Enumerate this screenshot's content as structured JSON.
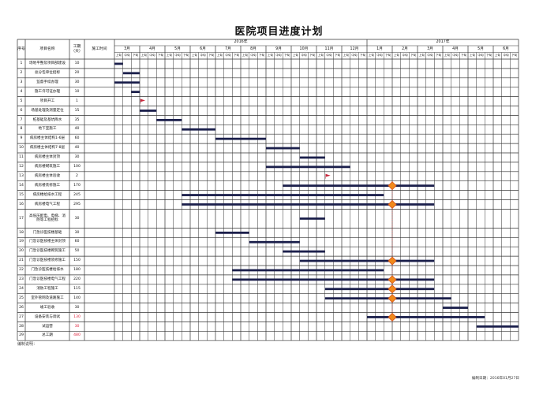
{
  "title": "医院项目进度计划",
  "header": {
    "seq": "序号",
    "name": "项目名称",
    "days": "工期（天）",
    "time": "施工时间",
    "years": [
      {
        "label": "2016年",
        "months": [
          "3月",
          "4月",
          "5月",
          "6月",
          "7月",
          "8月",
          "9月",
          "10月",
          "11月",
          "12月"
        ]
      },
      {
        "label": "2017年",
        "months": [
          "1月",
          "2月",
          "3月",
          "4月",
          "5月",
          "6月"
        ]
      }
    ],
    "periods": [
      "上旬",
      "中旬",
      "下旬"
    ]
  },
  "footer": {
    "note": "编制说明：",
    "date": "编制日期：2016年01月27日"
  },
  "colors": {
    "bar": "#1b1f4b",
    "milestone_flag": "#c8283c",
    "diamond": "#f08a1c",
    "diamond_edge": "#d4501a",
    "red_text": "#e0203a",
    "grid": "#333333"
  },
  "chart_data": {
    "type": "gantt",
    "title": "医院项目进度计划",
    "time_unit": "旬 (上旬=1, 中旬=2, 下旬=3)",
    "range": [
      "2016-03-1",
      "2017-06-3"
    ],
    "tasks": [
      {
        "no": "1",
        "name": "场地平整及项目部建设",
        "days": "10",
        "start": "2016-03-1",
        "end": "2016-03-1"
      },
      {
        "no": "2",
        "name": "总分包单位招标",
        "days": "20",
        "start": "2016-03-2",
        "end": "2016-03-3"
      },
      {
        "no": "3",
        "name": "监督手续办理",
        "days": "30",
        "start": "2016-03-1",
        "end": "2016-03-3"
      },
      {
        "no": "4",
        "name": "施工许可证办理",
        "days": "10",
        "start": "2016-03-3",
        "end": "2016-03-3"
      },
      {
        "no": "5",
        "name": "项目开工",
        "days": "1",
        "flag": "2016-04-1"
      },
      {
        "no": "6",
        "name": "场基处理及测量定位",
        "days": "15",
        "start": "2016-04-1",
        "end": "2016-04-2"
      },
      {
        "no": "7",
        "name": "桩基础及基坑降水",
        "days": "35",
        "start": "2016-04-3",
        "end": "2016-05-2"
      },
      {
        "no": "8",
        "name": "地下室施工",
        "days": "40",
        "start": "2016-05-3",
        "end": "2016-06-3"
      },
      {
        "no": "9",
        "name": "病房楼主体结构1-6层",
        "days": "60",
        "start": "2016-07-1",
        "end": "2016-08-3"
      },
      {
        "no": "10",
        "name": "病房楼主体结构7-8层",
        "days": "40",
        "start": "2016-09-1",
        "end": "2016-10-1"
      },
      {
        "no": "11",
        "name": "病房楼主体封顶",
        "days": "30",
        "start": "2016-10-2",
        "end": "2016-11-1"
      },
      {
        "no": "12",
        "name": "病房楼砌筑施工",
        "days": "100",
        "start": "2016-09-1",
        "end": "2016-12-1"
      },
      {
        "no": "13",
        "name": "病房楼主体验收",
        "days": "2",
        "flag": "2016-11-2"
      },
      {
        "no": "14",
        "name": "病房楼装修施工",
        "days": "170",
        "start": "2016-09-3",
        "end": "2017-03-2",
        "diamond": "2017-02-1"
      },
      {
        "no": "15",
        "name": "病房楼给排水工程",
        "days": "245",
        "start": "2016-05-3",
        "end": "2017-01-2"
      },
      {
        "no": "16",
        "name": "病房楼电气工程",
        "days": "295",
        "start": "2016-05-3",
        "end": "2017-03-2",
        "diamond": "2017-02-1"
      },
      {
        "no": "17",
        "name": "高低压配电、电梯、消防等工程招标",
        "days": "30",
        "start": "2016-10-2",
        "end": "2016-11-1",
        "tall": true
      },
      {
        "no": "18",
        "name": "门急诊医技楼基础",
        "days": "30",
        "start": "2016-07-1",
        "end": "2016-08-1"
      },
      {
        "no": "19",
        "name": "门急诊医技楼主体封顶",
        "days": "60",
        "start": "2016-08-2",
        "end": "2016-10-1"
      },
      {
        "no": "20",
        "name": "门急诊医技楼砌筑施工",
        "days": "50",
        "start": "2016-09-3",
        "end": "2016-11-1"
      },
      {
        "no": "21",
        "name": "门急诊医技楼装修施工",
        "days": "150",
        "start": "2016-10-2",
        "end": "2017-03-2",
        "diamond": "2017-02-1"
      },
      {
        "no": "22",
        "name": "门急诊医技楼给排水",
        "days": "180",
        "start": "2016-07-3",
        "end": "2017-01-2"
      },
      {
        "no": "23",
        "name": "门急诊医技楼电气工程",
        "days": "220",
        "start": "2016-07-3",
        "end": "2017-03-2",
        "diamond": "2017-02-1"
      },
      {
        "no": "24",
        "name": "消防工程施工",
        "days": "115",
        "start": "2016-11-2",
        "end": "2017-03-2",
        "diamond": "2017-02-1"
      },
      {
        "no": "25",
        "name": "室外管网及道路施工",
        "days": "140",
        "start": "2016-11-2",
        "end": "2017-04-1",
        "diamond": "2017-02-1"
      },
      {
        "no": "26",
        "name": "竣工验收",
        "days": "30",
        "start": "2017-04-1",
        "end": "2017-04-3"
      },
      {
        "no": "27",
        "name": "设备安装与调试",
        "days": "130",
        "start": "2017-01-1",
        "end": "2017-05-2",
        "diamond": "2017-02-1",
        "days_red": true
      },
      {
        "no": "28",
        "name": "试运营",
        "days": "30",
        "start": "2017-05-2",
        "end": "2017-06-3",
        "days_red": true
      },
      {
        "no": "29",
        "name": "总工期",
        "days": "480",
        "days_red": true
      }
    ]
  }
}
